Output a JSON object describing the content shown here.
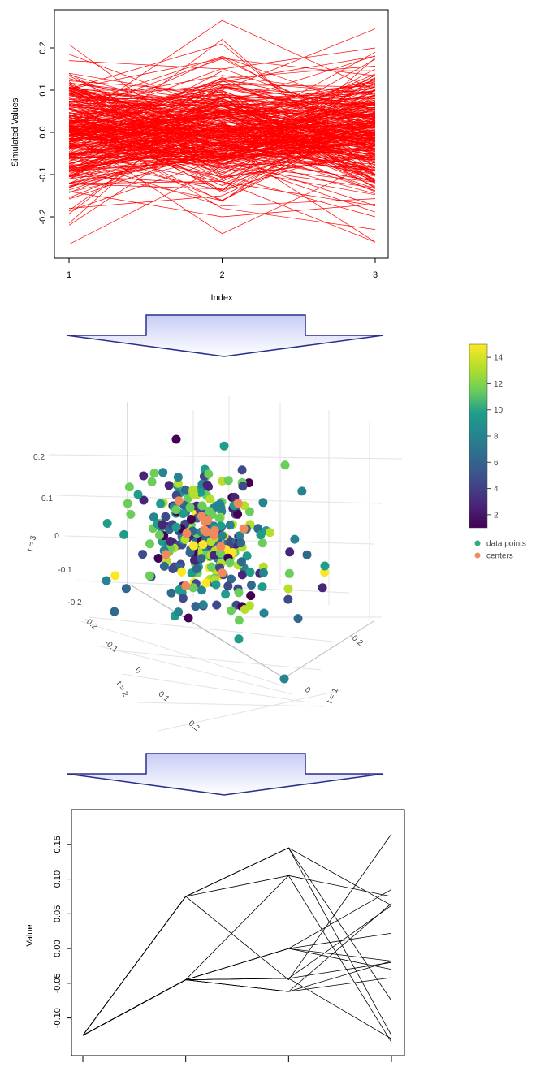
{
  "chart_data": [
    {
      "type": "line",
      "xlabel": "Index",
      "ylabel": "Simulated Values",
      "x_ticks": [
        "1",
        "2",
        "3"
      ],
      "y_ticks": [
        "-0.2",
        "-0.1",
        "0.0",
        "0.1",
        "0.2"
      ],
      "xlim": [
        1,
        3
      ],
      "ylim": [
        -0.28,
        0.28
      ],
      "line_color": "#ff0000",
      "n_series": 300,
      "series_note_hidden": "",
      "series": [
        {
          "values": [
            0.185,
            0.05,
            0.01
          ]
        },
        {
          "values": [
            -0.265,
            -0.08,
            -0.06
          ]
        },
        {
          "values": [
            -0.22,
            0.02,
            -0.05
          ]
        },
        {
          "values": [
            0.02,
            0.265,
            0.1
          ]
        },
        {
          "values": [
            0.0,
            -0.24,
            -0.07
          ]
        },
        {
          "values": [
            0.03,
            -0.18,
            -0.23
          ]
        },
        {
          "values": [
            0.1,
            0.1,
            0.245
          ]
        },
        {
          "values": [
            0.17,
            0.15,
            0.2
          ]
        },
        {
          "values": [
            -0.18,
            -0.15,
            0.02
          ]
        },
        {
          "values": [
            -0.12,
            -0.04,
            0.15
          ]
        },
        {
          "values": [
            0.12,
            -0.1,
            -0.2
          ]
        },
        {
          "values": [
            -0.05,
            0.22,
            -0.1
          ]
        },
        {
          "values": [
            0.06,
            0.18,
            0.05
          ]
        },
        {
          "values": [
            -0.14,
            -0.2,
            -0.17
          ]
        },
        {
          "values": [
            0.14,
            0.08,
            -0.12
          ]
        },
        {
          "values": [
            -0.08,
            0.12,
            0.18
          ]
        }
      ]
    },
    {
      "type": "scatter",
      "projection": "3d",
      "axis_titles": {
        "x": "t = 1",
        "y": "t = 2",
        "z": "t = 3"
      },
      "x_ticks": [
        "-0.2",
        "0"
      ],
      "y_ticks": [
        "-0.2",
        "-0.1",
        "0",
        "0.1",
        "0.2"
      ],
      "z_ticks": [
        "-0.2",
        "-0.1",
        "0",
        "0.1",
        "0.2"
      ],
      "colorbar": {
        "ticks": [
          "2",
          "4",
          "6",
          "8",
          "10",
          "12",
          "14"
        ],
        "range": [
          1,
          15
        ],
        "colormap": "viridis"
      },
      "legend": [
        {
          "label": "data points",
          "color": "#2bab80"
        },
        {
          "label": "centers",
          "color": "#f08a5d"
        }
      ],
      "point_count": 300,
      "center_count": 15,
      "center_color": "#f08a5d"
    },
    {
      "type": "line",
      "xlabel": "",
      "ylabel": "Value",
      "y_ticks": [
        "-0.10",
        "-0.05",
        "0.00",
        "0.05",
        "0.10",
        "0.15"
      ],
      "ylim": [
        -0.14,
        0.17
      ],
      "x": [
        1,
        2,
        3,
        4
      ],
      "line_color": "#000000",
      "series": [
        {
          "values": [
            -0.125,
            0.075,
            0.145,
            -0.125
          ]
        },
        {
          "values": [
            -0.125,
            0.075,
            -0.045,
            0.165
          ]
        },
        {
          "values": [
            -0.125,
            -0.045,
            0.105,
            -0.135
          ]
        },
        {
          "values": [
            -0.125,
            -0.045,
            0.0,
            0.085
          ]
        },
        {
          "values": [
            -0.125,
            -0.045,
            -0.062,
            -0.018
          ]
        },
        {
          "values": [
            -0.125,
            0.075,
            0.145,
            0.062
          ]
        },
        {
          "values": [
            -0.125,
            -0.045,
            0.0,
            -0.03
          ]
        },
        {
          "values": [
            -0.125,
            -0.045,
            -0.062,
            0.065
          ]
        },
        {
          "values": [
            -0.125,
            0.075,
            0.145,
            -0.075
          ]
        },
        {
          "values": [
            -0.125,
            -0.045,
            0.0,
            0.022
          ]
        },
        {
          "values": [
            -0.125,
            -0.045,
            0.0,
            -0.018
          ]
        },
        {
          "values": [
            -0.125,
            -0.045,
            -0.062,
            -0.042
          ]
        },
        {
          "values": [
            -0.125,
            0.075,
            0.105,
            0.075
          ]
        },
        {
          "values": [
            -0.125,
            -0.045,
            -0.043,
            -0.13
          ]
        },
        {
          "values": [
            -0.125,
            -0.045,
            -0.043,
            0.062
          ]
        },
        {
          "values": [
            -0.125,
            -0.045,
            -0.043,
            -0.02
          ]
        }
      ]
    }
  ]
}
